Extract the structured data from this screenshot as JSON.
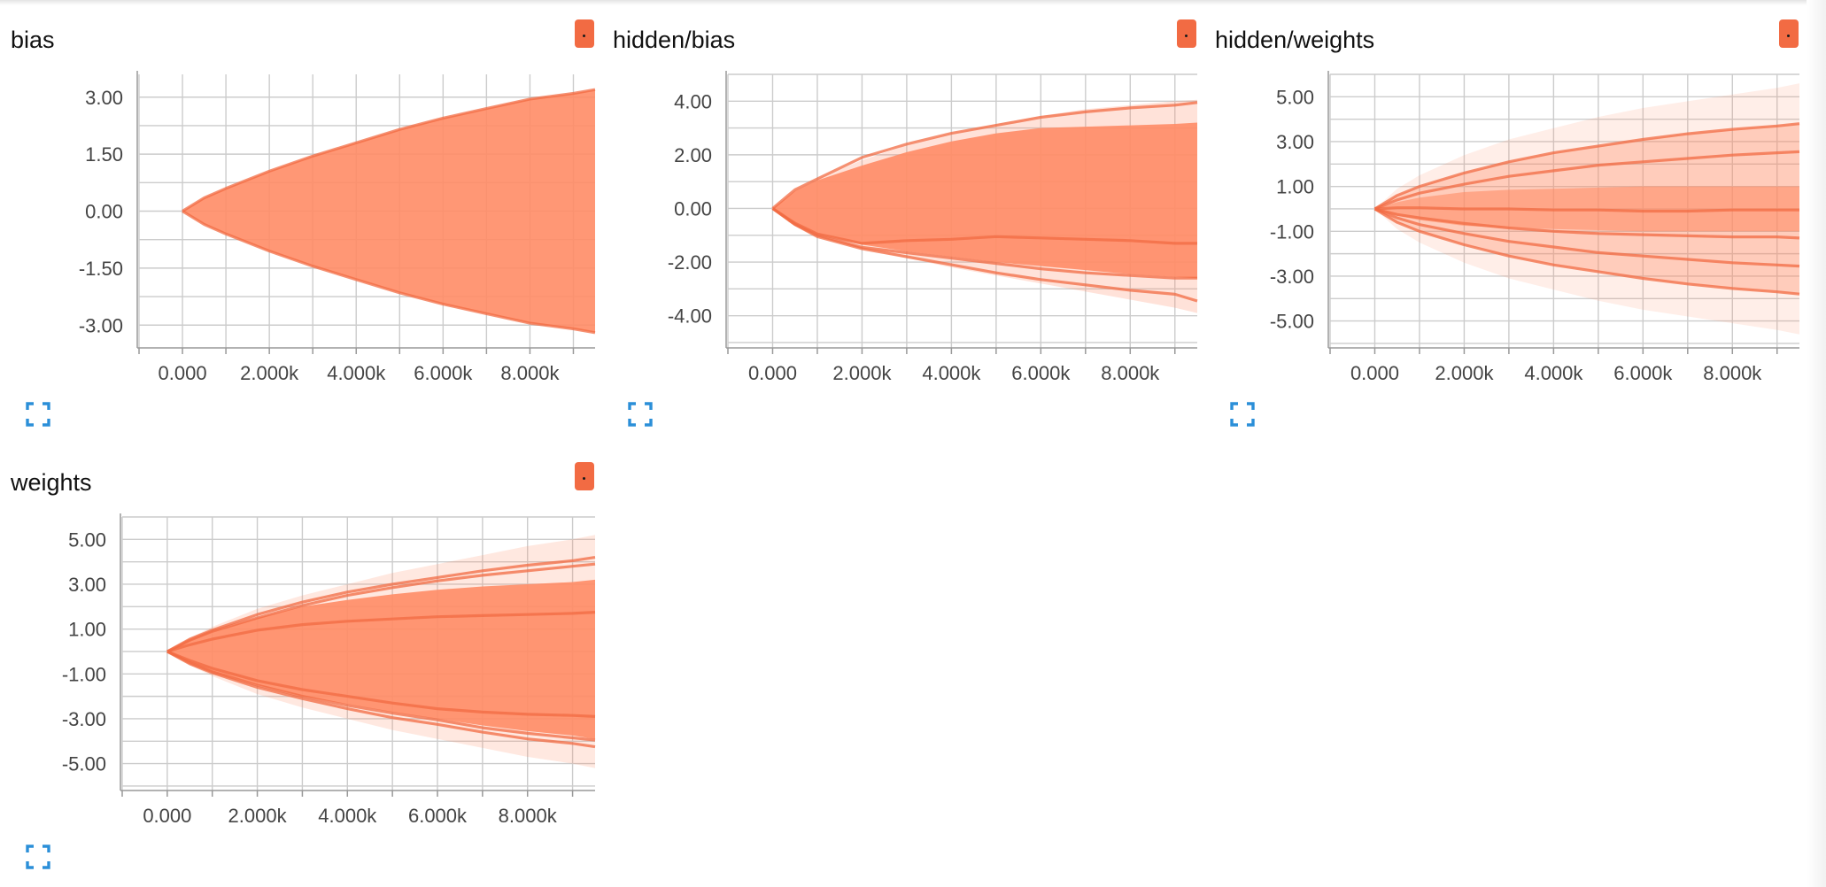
{
  "theme": {
    "area_color": "#ff8c66",
    "line_color": "#f26b43",
    "chip_color": "#f26b43",
    "grid_color": "#cccccc",
    "axis_color": "#999999",
    "expand_icon_color": "#2b8fd8"
  },
  "icons": {
    "chip": "color-swatch-icon",
    "expand": "expand-fullscreen-icon"
  },
  "chart_data": [
    {
      "type": "area",
      "title": "bias",
      "xlabel": "",
      "ylabel": "",
      "xlim": [
        -1000,
        9500
      ],
      "ylim": [
        -3.6,
        3.6
      ],
      "x_ticks": [
        0,
        2000,
        4000,
        6000,
        8000
      ],
      "x_tick_labels": [
        "0.000",
        "2.000k",
        "4.000k",
        "6.000k",
        "8.000k"
      ],
      "y_ticks": [
        3.0,
        1.5,
        0.0,
        -1.5,
        -3.0
      ],
      "y_tick_labels": [
        "3.00",
        "1.50",
        "0.00",
        "-1.50",
        "-3.00"
      ],
      "grid": true,
      "x": [
        0,
        500,
        1000,
        2000,
        3000,
        4000,
        5000,
        6000,
        7000,
        8000,
        9000,
        9500
      ],
      "bands": [
        {
          "lower": [
            0,
            -0.35,
            -0.6,
            -1.05,
            -1.45,
            -1.8,
            -2.15,
            -2.45,
            -2.7,
            -2.95,
            -3.1,
            -3.2
          ],
          "upper": [
            0,
            0.35,
            0.6,
            1.05,
            1.45,
            1.8,
            2.15,
            2.45,
            2.7,
            2.95,
            3.1,
            3.2
          ],
          "opacity": 0.9
        }
      ],
      "lines": [
        {
          "y": [
            0,
            0.35,
            0.6,
            1.05,
            1.45,
            1.8,
            2.15,
            2.45,
            2.7,
            2.95,
            3.1,
            3.2
          ]
        },
        {
          "y": [
            0,
            -0.35,
            -0.6,
            -1.05,
            -1.45,
            -1.8,
            -2.15,
            -2.45,
            -2.7,
            -2.95,
            -3.1,
            -3.2
          ]
        }
      ]
    },
    {
      "type": "area",
      "title": "hidden/bias",
      "xlabel": "",
      "ylabel": "",
      "xlim": [
        -1000,
        9500
      ],
      "ylim": [
        -5.2,
        5.0
      ],
      "x_ticks": [
        0,
        2000,
        4000,
        6000,
        8000
      ],
      "x_tick_labels": [
        "0.000",
        "2.000k",
        "4.000k",
        "6.000k",
        "8.000k"
      ],
      "y_ticks": [
        4.0,
        2.0,
        0.0,
        -2.0,
        -4.0
      ],
      "y_tick_labels": [
        "4.00",
        "2.00",
        "0.00",
        "-2.00",
        "-4.00"
      ],
      "grid": true,
      "x": [
        0,
        500,
        1000,
        2000,
        3000,
        4000,
        5000,
        6000,
        7000,
        8000,
        9000,
        9500
      ],
      "bands": [
        {
          "lower": [
            0,
            -0.6,
            -1.0,
            -1.5,
            -1.85,
            -2.2,
            -2.5,
            -2.8,
            -3.1,
            -3.4,
            -3.7,
            -3.9
          ],
          "upper": [
            0,
            0.7,
            1.1,
            1.8,
            2.35,
            2.8,
            3.15,
            3.45,
            3.7,
            3.85,
            4.0,
            4.05
          ],
          "opacity": 0.25
        },
        {
          "lower": [
            0,
            -0.55,
            -0.95,
            -1.35,
            -1.6,
            -1.8,
            -2.0,
            -2.15,
            -2.3,
            -2.45,
            -2.55,
            -2.6
          ],
          "upper": [
            0,
            0.65,
            1.05,
            1.6,
            2.1,
            2.5,
            2.8,
            3.0,
            3.05,
            3.1,
            3.15,
            3.2
          ],
          "opacity": 0.9
        }
      ],
      "lines": [
        {
          "y": [
            0,
            0.7,
            1.1,
            1.9,
            2.4,
            2.8,
            3.1,
            3.4,
            3.6,
            3.75,
            3.85,
            3.95
          ]
        },
        {
          "y": [
            0,
            -0.55,
            -0.95,
            -1.3,
            -1.2,
            -1.15,
            -1.05,
            -1.1,
            -1.15,
            -1.2,
            -1.3,
            -1.3
          ]
        },
        {
          "y": [
            0,
            -0.6,
            -1.0,
            -1.45,
            -1.65,
            -1.85,
            -2.05,
            -2.25,
            -2.4,
            -2.5,
            -2.6,
            -2.6
          ]
        },
        {
          "y": [
            0,
            -0.6,
            -1.05,
            -1.5,
            -1.8,
            -2.1,
            -2.4,
            -2.65,
            -2.85,
            -3.05,
            -3.2,
            -3.45
          ]
        }
      ]
    },
    {
      "type": "area",
      "title": "hidden/weights",
      "xlabel": "",
      "ylabel": "",
      "xlim": [
        -1000,
        9500
      ],
      "ylim": [
        -6.2,
        6.0
      ],
      "x_ticks": [
        0,
        2000,
        4000,
        6000,
        8000
      ],
      "x_tick_labels": [
        "0.000",
        "2.000k",
        "4.000k",
        "6.000k",
        "8.000k"
      ],
      "y_ticks": [
        5.0,
        3.0,
        1.0,
        -1.0,
        -3.0,
        -5.0
      ],
      "y_tick_labels": [
        "5.00",
        "3.00",
        "1.00",
        "-1.00",
        "-3.00",
        "-5.00"
      ],
      "grid": true,
      "x": [
        0,
        500,
        1000,
        2000,
        3000,
        4000,
        5000,
        6000,
        7000,
        8000,
        9000,
        9500
      ],
      "bands": [
        {
          "lower": [
            0,
            -0.9,
            -1.5,
            -2.4,
            -3.1,
            -3.6,
            -4.1,
            -4.5,
            -4.8,
            -5.1,
            -5.4,
            -5.6
          ],
          "upper": [
            0,
            0.9,
            1.5,
            2.4,
            3.1,
            3.6,
            4.1,
            4.5,
            4.8,
            5.1,
            5.4,
            5.6
          ],
          "opacity": 0.15
        },
        {
          "lower": [
            0,
            -0.6,
            -1.0,
            -1.6,
            -2.1,
            -2.5,
            -2.8,
            -3.1,
            -3.35,
            -3.55,
            -3.7,
            -3.8
          ],
          "upper": [
            0,
            0.6,
            1.0,
            1.6,
            2.1,
            2.5,
            2.8,
            3.1,
            3.35,
            3.55,
            3.7,
            3.8
          ],
          "opacity": 0.35
        },
        {
          "lower": [
            0,
            -0.3,
            -0.5,
            -0.75,
            -0.85,
            -0.9,
            -0.95,
            -1.0,
            -1.0,
            -1.0,
            -1.0,
            -1.0
          ],
          "upper": [
            0,
            0.3,
            0.5,
            0.75,
            0.85,
            0.9,
            0.95,
            1.0,
            1.0,
            1.0,
            1.0,
            1.0
          ],
          "opacity": 0.6
        }
      ],
      "lines": [
        {
          "y": [
            0,
            0.6,
            1.0,
            1.6,
            2.1,
            2.5,
            2.8,
            3.1,
            3.35,
            3.55,
            3.7,
            3.8
          ]
        },
        {
          "y": [
            0,
            0.4,
            0.7,
            1.1,
            1.45,
            1.7,
            1.95,
            2.1,
            2.25,
            2.4,
            2.5,
            2.55
          ]
        },
        {
          "y": [
            0,
            0.05,
            0.05,
            0.0,
            0.0,
            -0.05,
            -0.05,
            -0.1,
            -0.1,
            -0.05,
            -0.05,
            -0.05
          ]
        },
        {
          "y": [
            0,
            -0.25,
            -0.4,
            -0.65,
            -0.85,
            -1.0,
            -1.1,
            -1.15,
            -1.2,
            -1.25,
            -1.25,
            -1.3
          ]
        },
        {
          "y": [
            0,
            -0.4,
            -0.7,
            -1.1,
            -1.45,
            -1.7,
            -1.95,
            -2.1,
            -2.25,
            -2.4,
            -2.5,
            -2.55
          ]
        },
        {
          "y": [
            0,
            -0.6,
            -1.0,
            -1.6,
            -2.1,
            -2.5,
            -2.8,
            -3.1,
            -3.35,
            -3.55,
            -3.7,
            -3.8
          ]
        }
      ]
    },
    {
      "type": "area",
      "title": "weights",
      "xlabel": "",
      "ylabel": "",
      "xlim": [
        -1000,
        9500
      ],
      "ylim": [
        -6.2,
        6.0
      ],
      "x_ticks": [
        0,
        2000,
        4000,
        6000,
        8000
      ],
      "x_tick_labels": [
        "0.000",
        "2.000k",
        "4.000k",
        "6.000k",
        "8.000k"
      ],
      "y_ticks": [
        5.0,
        3.0,
        1.0,
        -1.0,
        -3.0,
        -5.0
      ],
      "y_tick_labels": [
        "5.00",
        "3.00",
        "1.00",
        "-1.00",
        "-3.00",
        "-5.00"
      ],
      "grid": true,
      "x": [
        0,
        500,
        1000,
        2000,
        3000,
        4000,
        5000,
        6000,
        7000,
        8000,
        9000,
        9500
      ],
      "bands": [
        {
          "lower": [
            0,
            -0.6,
            -1.1,
            -1.9,
            -2.5,
            -3.0,
            -3.5,
            -3.9,
            -4.3,
            -4.7,
            -5.0,
            -5.2
          ],
          "upper": [
            0,
            0.6,
            1.1,
            1.9,
            2.5,
            3.0,
            3.5,
            3.9,
            4.3,
            4.7,
            5.0,
            5.2
          ],
          "opacity": 0.2
        },
        {
          "lower": [
            0,
            -0.5,
            -0.9,
            -1.5,
            -2.0,
            -2.35,
            -2.7,
            -3.0,
            -3.3,
            -3.55,
            -3.75,
            -3.9
          ],
          "upper": [
            0,
            0.5,
            0.9,
            1.5,
            2.0,
            2.3,
            2.55,
            2.75,
            2.9,
            3.0,
            3.1,
            3.2
          ],
          "opacity": 0.9
        }
      ],
      "lines": [
        {
          "y": [
            0,
            0.55,
            0.95,
            1.65,
            2.2,
            2.65,
            3.0,
            3.3,
            3.6,
            3.85,
            4.05,
            4.2
          ]
        },
        {
          "y": [
            0,
            0.5,
            0.9,
            1.5,
            2.05,
            2.5,
            2.85,
            3.15,
            3.4,
            3.6,
            3.8,
            3.9
          ]
        },
        {
          "y": [
            0,
            0.3,
            0.55,
            0.95,
            1.2,
            1.35,
            1.45,
            1.55,
            1.6,
            1.65,
            1.7,
            1.75
          ]
        },
        {
          "y": [
            0,
            -0.4,
            -0.75,
            -1.3,
            -1.7,
            -2.0,
            -2.3,
            -2.55,
            -2.7,
            -2.8,
            -2.85,
            -2.9
          ]
        },
        {
          "y": [
            0,
            -0.5,
            -0.9,
            -1.5,
            -2.0,
            -2.4,
            -2.75,
            -3.05,
            -3.4,
            -3.65,
            -3.85,
            -3.95
          ]
        },
        {
          "y": [
            0,
            -0.55,
            -0.95,
            -1.6,
            -2.1,
            -2.55,
            -2.95,
            -3.25,
            -3.6,
            -3.9,
            -4.1,
            -4.25
          ]
        }
      ]
    }
  ]
}
